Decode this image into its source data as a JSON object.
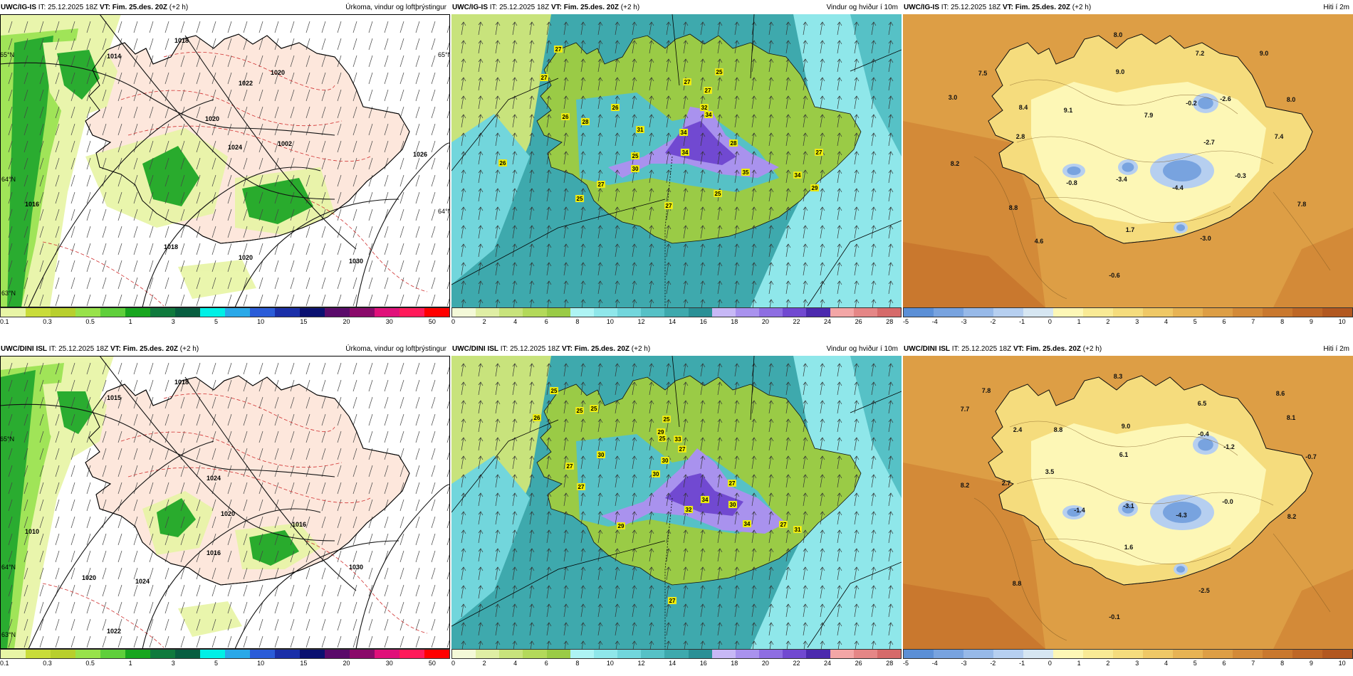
{
  "colorbars": {
    "precip": {
      "colors": [
        "#e8f5a6",
        "#c9dc3a",
        "#b8cf2d",
        "#98e24a",
        "#5fcf3b",
        "#18a61f",
        "#0f7a3d",
        "#075e40",
        "#00f0e6",
        "#2aa8e8",
        "#2a5cd8",
        "#1a2fa8",
        "#0a1070",
        "#5a0a6a",
        "#8a0a6a",
        "#e0107a",
        "#ff1a5a",
        "#ff0000"
      ],
      "ticks": [
        "0.1",
        "0.3",
        "0.5",
        "1",
        "3",
        "5",
        "10",
        "15",
        "20",
        "30",
        "50"
      ]
    },
    "wind": {
      "colors": [
        "#f4f9d8",
        "#dfeea4",
        "#c8e37c",
        "#b3d95a",
        "#9acb46",
        "#aef4f4",
        "#8fe7ea",
        "#72d6dc",
        "#56c1c6",
        "#3ea9ad",
        "#2a9096",
        "#c7b8f6",
        "#a992ee",
        "#8e6ee2",
        "#7149d1",
        "#4c2aae",
        "#f3a6a6",
        "#e58686",
        "#d66a6a"
      ],
      "ticks": [
        "0",
        "2",
        "4",
        "6",
        "8",
        "10",
        "12",
        "14",
        "16",
        "18",
        "20",
        "22",
        "24",
        "26",
        "28"
      ]
    },
    "temp": {
      "colors": [
        "#5b8fd6",
        "#78a3df",
        "#97b9e8",
        "#b6cff0",
        "#d6e6f2",
        "#fdf7b6",
        "#f9ea95",
        "#f5dc7d",
        "#efc866",
        "#e7b354",
        "#dd9e45",
        "#d38a38",
        "#c9782e",
        "#be6726",
        "#b25820"
      ],
      "ticks": [
        "-5",
        "-4",
        "-3",
        "-2",
        "-1",
        "0",
        "1",
        "2",
        "3",
        "4",
        "5",
        "6",
        "7",
        "8",
        "9",
        "10"
      ]
    }
  },
  "panels": [
    {
      "id": "igis-precip",
      "model": "UWC/IG-IS",
      "it_label": "IT:",
      "it": "25.12.2025 18Z",
      "vt_label": "VT:",
      "vt": "Fim. 25.des. 20Z",
      "lead": "(+2 h)",
      "title": "Úrkoma, vindur og loftþrýstingur",
      "kind": "precip",
      "labels": [
        {
          "text": "1014"
        },
        {
          "text": "1018"
        },
        {
          "text": "1020"
        },
        {
          "text": "1022"
        },
        {
          "text": "1020"
        },
        {
          "text": "1024"
        },
        {
          "text": "1002"
        },
        {
          "text": "1026"
        },
        {
          "text": "1016"
        },
        {
          "text": "1018"
        },
        {
          "text": "1020"
        },
        {
          "text": "1030"
        },
        {
          "text": "65°N"
        },
        {
          "text": "64°N"
        },
        {
          "text": "63°N"
        },
        {
          "text": "65°N"
        },
        {
          "text": "64°N"
        }
      ]
    },
    {
      "id": "igis-wind",
      "model": "UWC/IG-IS",
      "it_label": "IT:",
      "it": "25.12.2025 18Z",
      "vt_label": "VT:",
      "vt": "Fim. 25.des. 20Z",
      "lead": "(+2 h)",
      "title": "Vindur og hviður í 10m",
      "kind": "wind",
      "labels": [
        {
          "text": "27"
        },
        {
          "text": "27"
        },
        {
          "text": "26"
        },
        {
          "text": "26"
        },
        {
          "text": "28"
        },
        {
          "text": "26"
        },
        {
          "text": "27"
        },
        {
          "text": "25"
        },
        {
          "text": "30"
        },
        {
          "text": "25"
        },
        {
          "text": "31"
        },
        {
          "text": "34"
        },
        {
          "text": "34"
        },
        {
          "text": "32"
        },
        {
          "text": "34"
        },
        {
          "text": "28"
        },
        {
          "text": "25"
        },
        {
          "text": "27"
        },
        {
          "text": "27"
        },
        {
          "text": "25"
        },
        {
          "text": "35"
        },
        {
          "text": "34"
        },
        {
          "text": "29"
        },
        {
          "text": "27"
        },
        {
          "text": "27"
        }
      ]
    },
    {
      "id": "igis-temp",
      "model": "UWC/IG-IS",
      "it_label": "IT:",
      "it": "25.12.2025 18Z",
      "vt_label": "VT:",
      "vt": "Fim. 25.des. 20Z",
      "lead": "(+2 h)",
      "title": "Hiti í 2m",
      "kind": "temp",
      "labels": [
        {
          "text": "8.0"
        },
        {
          "text": "7.2"
        },
        {
          "text": "9.0"
        },
        {
          "text": "7.5"
        },
        {
          "text": "3.0"
        },
        {
          "text": "9.0"
        },
        {
          "text": "-0.2"
        },
        {
          "text": "-2.6"
        },
        {
          "text": "8.0"
        },
        {
          "text": "8.4"
        },
        {
          "text": "9.1"
        },
        {
          "text": "7.9"
        },
        {
          "text": "2.8"
        },
        {
          "text": "-2.7"
        },
        {
          "text": "7.4"
        },
        {
          "text": "8.2"
        },
        {
          "text": "-0.8"
        },
        {
          "text": "-3.4"
        },
        {
          "text": "-4.4"
        },
        {
          "text": "-0.3"
        },
        {
          "text": "8.8"
        },
        {
          "text": "7.8"
        },
        {
          "text": "1.7"
        },
        {
          "text": "4.6"
        },
        {
          "text": "-3.0"
        },
        {
          "text": "-0.6"
        }
      ]
    },
    {
      "id": "dini-precip",
      "model": "UWC/DINI ISL",
      "it_label": "IT:",
      "it": "25.12.2025 18Z",
      "vt_label": "VT:",
      "vt": "Fim. 25.des. 20Z",
      "lead": "(+2 h)",
      "title": "Úrkoma, vindur og loftþrýstingur",
      "kind": "precip",
      "labels": [
        {
          "text": "1015"
        },
        {
          "text": "1018"
        },
        {
          "text": "1020"
        },
        {
          "text": "1024"
        },
        {
          "text": "1024"
        },
        {
          "text": "1020"
        },
        {
          "text": "1022"
        },
        {
          "text": "1030"
        },
        {
          "text": "1016"
        },
        {
          "text": "1016"
        },
        {
          "text": "1010"
        },
        {
          "text": "65°N"
        },
        {
          "text": "64°N"
        },
        {
          "text": "63°N"
        }
      ]
    },
    {
      "id": "dini-wind",
      "model": "UWC/DINI ISL",
      "it_label": "IT:",
      "it": "25.12.2025 18Z",
      "vt_label": "VT:",
      "vt": "Fim. 25.des. 20Z",
      "lead": "(+2 h)",
      "title": "Vindur og hviður í 10m",
      "kind": "wind",
      "labels": [
        {
          "text": "25"
        },
        {
          "text": "26"
        },
        {
          "text": "25"
        },
        {
          "text": "25"
        },
        {
          "text": "29"
        },
        {
          "text": "25"
        },
        {
          "text": "33"
        },
        {
          "text": "25"
        },
        {
          "text": "30"
        },
        {
          "text": "27"
        },
        {
          "text": "27"
        },
        {
          "text": "30"
        },
        {
          "text": "30"
        },
        {
          "text": "27"
        },
        {
          "text": "32"
        },
        {
          "text": "34"
        },
        {
          "text": "27"
        },
        {
          "text": "30"
        },
        {
          "text": "29"
        },
        {
          "text": "34"
        },
        {
          "text": "27"
        },
        {
          "text": "31"
        },
        {
          "text": "27"
        }
      ]
    },
    {
      "id": "dini-temp",
      "model": "UWC/DINI ISL",
      "it_label": "IT:",
      "it": "25.12.2025 18Z",
      "vt_label": "VT:",
      "vt": "Fim. 25.des. 20Z",
      "lead": "(+2 h)",
      "title": "Hiti í 2m",
      "kind": "temp",
      "labels": [
        {
          "text": "8.3"
        },
        {
          "text": "7.8"
        },
        {
          "text": "8.6"
        },
        {
          "text": "7.7"
        },
        {
          "text": "6.5"
        },
        {
          "text": "8.1"
        },
        {
          "text": "2.4"
        },
        {
          "text": "9.0"
        },
        {
          "text": "8.8"
        },
        {
          "text": "-0.4"
        },
        {
          "text": "-1.2"
        },
        {
          "text": "-0.7"
        },
        {
          "text": "6.1"
        },
        {
          "text": "8.2"
        },
        {
          "text": "2.7"
        },
        {
          "text": "3.5"
        },
        {
          "text": "-1.4"
        },
        {
          "text": "-3.1"
        },
        {
          "text": "-0.0"
        },
        {
          "text": "-4.3"
        },
        {
          "text": "8.2"
        },
        {
          "text": "1.6"
        },
        {
          "text": "8.8"
        },
        {
          "text": "-2.5"
        },
        {
          "text": "-0.1"
        }
      ]
    }
  ]
}
